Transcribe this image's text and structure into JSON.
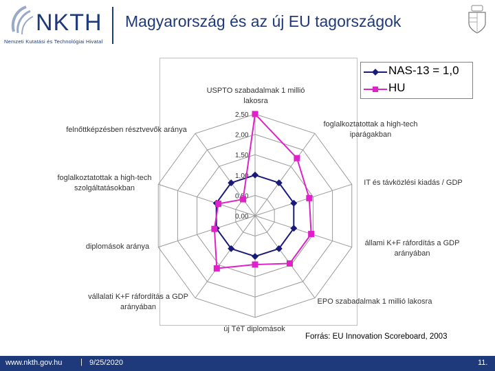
{
  "header": {
    "logo_text": "NKTH",
    "logo_subtitle": "Nemzeti Kutatási és Technológiai Hivatal",
    "title": "Magyarország és az új EU tagországok"
  },
  "footer": {
    "url": "www.nkth.gov.hu",
    "separator": "|",
    "date": "9/25/2020",
    "page": "11."
  },
  "source": "Forrás: EU Innovation Scoreboard, 2003",
  "colors": {
    "nas13": "#1a1a7a",
    "hu": "#e020c8",
    "brand": "#1f3a7a"
  },
  "chart_data": {
    "type": "radar",
    "axes": [
      "USPTO szabadalmak 1 millió lakosra",
      "foglalkoztatottak a high-tech iparágakban",
      "IT és távközlési kiadás / GDP",
      "állami K+F ráfordítás a GDP arányában",
      "EPO szabadalmak 1 millió lakosra",
      "új TéT diplomások",
      "vállalati K+F ráfordítás a GDP arányában",
      "diplomások aránya",
      "foglalkoztatottak a high-tech szolgáltatásokban",
      "felnőttképzésben résztvevők aránya"
    ],
    "ticks": [
      "0,00",
      "0,50",
      "1,00",
      "1,50",
      "2,00",
      "2,50"
    ],
    "range": [
      0,
      2.5
    ],
    "legend_position": "top-right",
    "series": [
      {
        "name": "NAS-13 = 1,0",
        "values": [
          1.0,
          1.0,
          1.0,
          1.0,
          1.0,
          1.0,
          1.0,
          1.0,
          1.0,
          1.0
        ]
      },
      {
        "name": "HU",
        "values": [
          2.5,
          1.75,
          1.4,
          1.45,
          1.45,
          1.2,
          1.6,
          1.05,
          0.95,
          0.5
        ]
      }
    ]
  }
}
